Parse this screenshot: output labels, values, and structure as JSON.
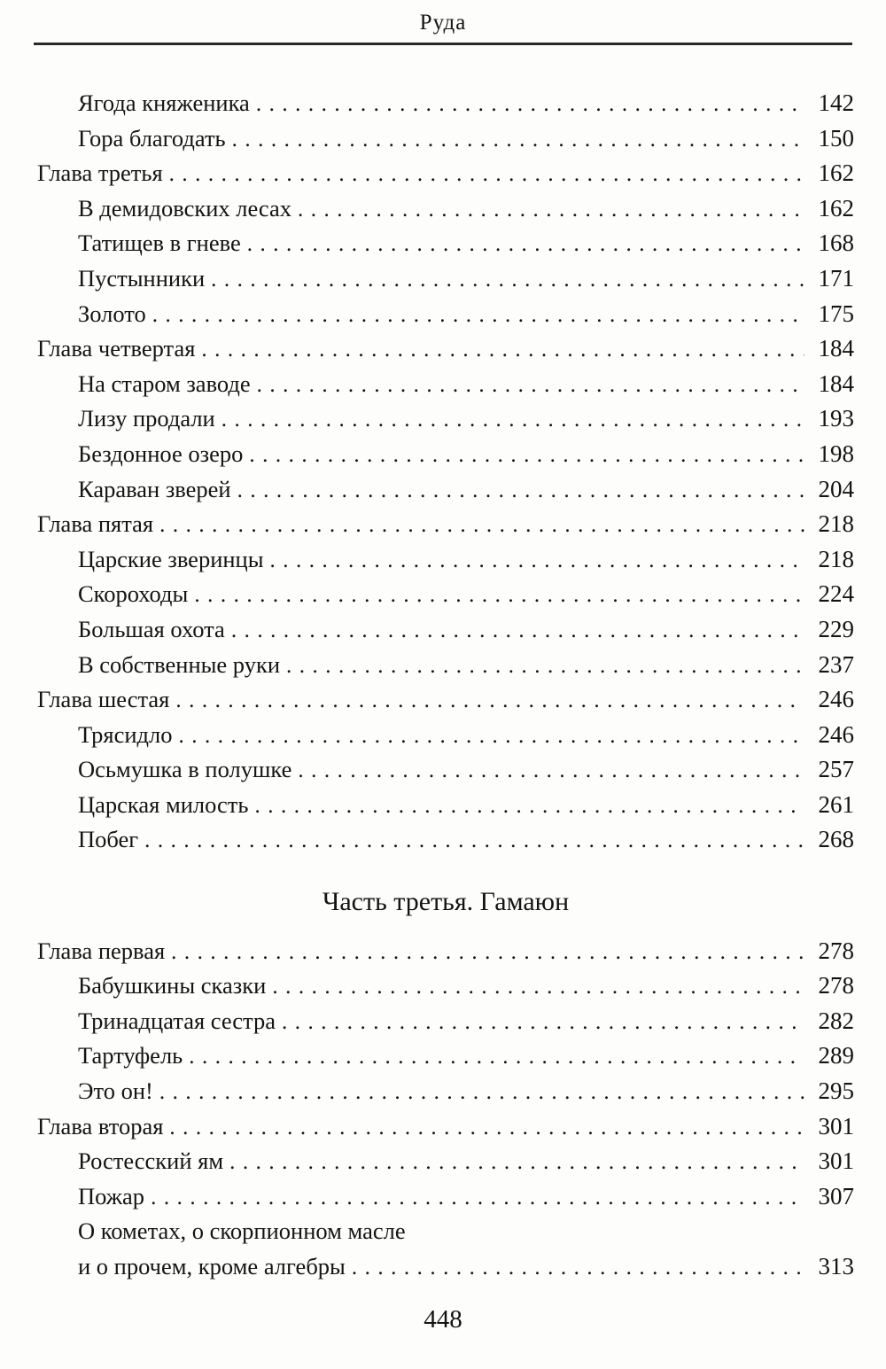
{
  "running_head": {
    "title": "Руда"
  },
  "toc": {
    "entries": [
      {
        "label": "Ягода княженика",
        "page": "142",
        "level": 1
      },
      {
        "label": "Гора благодать",
        "page": "150",
        "level": 1
      },
      {
        "label": "Глава третья",
        "page": "162",
        "level": 0
      },
      {
        "label": "В демидовских лесах",
        "page": "162",
        "level": 1
      },
      {
        "label": "Татищев в гневе",
        "page": "168",
        "level": 1
      },
      {
        "label": "Пустынники",
        "page": "171",
        "level": 1
      },
      {
        "label": "Золото",
        "page": "175",
        "level": 1
      },
      {
        "label": "Глава четвертая",
        "page": "184",
        "level": 0
      },
      {
        "label": "На старом заводе",
        "page": "184",
        "level": 1
      },
      {
        "label": "Лизу продали",
        "page": "193",
        "level": 1
      },
      {
        "label": "Бездонное озеро",
        "page": "198",
        "level": 1
      },
      {
        "label": "Караван зверей",
        "page": "204",
        "level": 1
      },
      {
        "label": "Глава пятая",
        "page": "218",
        "level": 0
      },
      {
        "label": "Царские зверинцы",
        "page": "218",
        "level": 1
      },
      {
        "label": "Скороходы",
        "page": "224",
        "level": 1
      },
      {
        "label": "Большая охота",
        "page": "229",
        "level": 1
      },
      {
        "label": "В собственные руки",
        "page": "237",
        "level": 1
      },
      {
        "label": "Глава шестая",
        "page": "246",
        "level": 0
      },
      {
        "label": "Трясидло",
        "page": "246",
        "level": 1
      },
      {
        "label": "Осьмушка в полушке",
        "page": "257",
        "level": 1
      },
      {
        "label": "Царская милость",
        "page": "261",
        "level": 1
      },
      {
        "label": "Побег",
        "page": "268",
        "level": 1
      },
      {
        "type": "part-heading",
        "label": "Часть третья. Гамаюн"
      },
      {
        "label": "Глава первая",
        "page": "278",
        "level": 0
      },
      {
        "label": "Бабушкины сказки",
        "page": "278",
        "level": 1
      },
      {
        "label": "Тринадцатая сестра",
        "page": "282",
        "level": 1
      },
      {
        "label": "Тартуфель",
        "page": "289",
        "level": 1
      },
      {
        "label": "Это он!",
        "page": "295",
        "level": 1
      },
      {
        "label": "Глава вторая",
        "page": "301",
        "level": 0
      },
      {
        "label": "Ростесский ям",
        "page": "301",
        "level": 1
      },
      {
        "label": "Пожар",
        "page": "307",
        "level": 1
      },
      {
        "label": "О кометах, о скорпионном масле",
        "page": "",
        "level": 1,
        "dots": false
      },
      {
        "label": "и о прочем, кроме алгебры",
        "page": "313",
        "level": 1
      }
    ]
  },
  "footer": {
    "page_number": "448"
  },
  "colors": {
    "paper": "#fdfdfc",
    "ink": "#151413"
  }
}
